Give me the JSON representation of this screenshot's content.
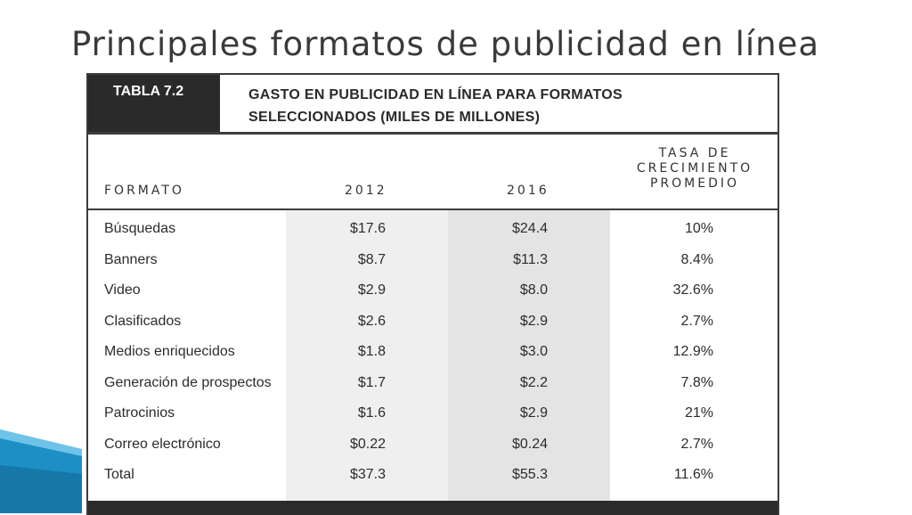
{
  "slide_title": "Principales formatos de publicidad en línea",
  "table": {
    "tag": "TABLA 7.2",
    "caption_line1": "GASTO EN PUBLICIDAD EN LÍNEA PARA FORMATOS",
    "caption_line2": "SELECCIONADOS (MILES DE MILLONES)",
    "columns": {
      "formato": "FORMATO",
      "y2012": "2012",
      "y2016": "2016",
      "tasa_line1": "TASA DE",
      "tasa_line2": "CRECIMIENTO",
      "tasa_line3": "PROMEDIO"
    },
    "rows": [
      {
        "formato": "Búsquedas",
        "y2012": "$17.6",
        "y2016": "$24.4",
        "tasa": "10%"
      },
      {
        "formato": "Banners",
        "y2012": "$8.7",
        "y2016": "$11.3",
        "tasa": "8.4%"
      },
      {
        "formato": "Video",
        "y2012": "$2.9",
        "y2016": "$8.0",
        "tasa": "32.6%"
      },
      {
        "formato": "Clasificados",
        "y2012": "$2.6",
        "y2016": "$2.9",
        "tasa": "2.7%"
      },
      {
        "formato": "Medios enriquecidos",
        "y2012": "$1.8",
        "y2016": "$3.0",
        "tasa": "12.9%"
      },
      {
        "formato": "Generación de prospectos",
        "y2012": "$1.7",
        "y2016": "$2.2",
        "tasa": "7.8%"
      },
      {
        "formato": "Patrocinios",
        "y2012": "$1.6",
        "y2016": "$2.9",
        "tasa": "21%"
      },
      {
        "formato": "Correo electrónico",
        "y2012": "$0.22",
        "y2016": "$0.24",
        "tasa": "2.7%"
      },
      {
        "formato": "Total",
        "y2012": "$37.3",
        "y2016": "$55.3",
        "tasa": "11.6%"
      }
    ]
  },
  "colors": {
    "title": "#3a3a3a",
    "header_dark": "#2a2a2a",
    "band": "#efefef",
    "deco_blue": "#1e8fc4"
  }
}
